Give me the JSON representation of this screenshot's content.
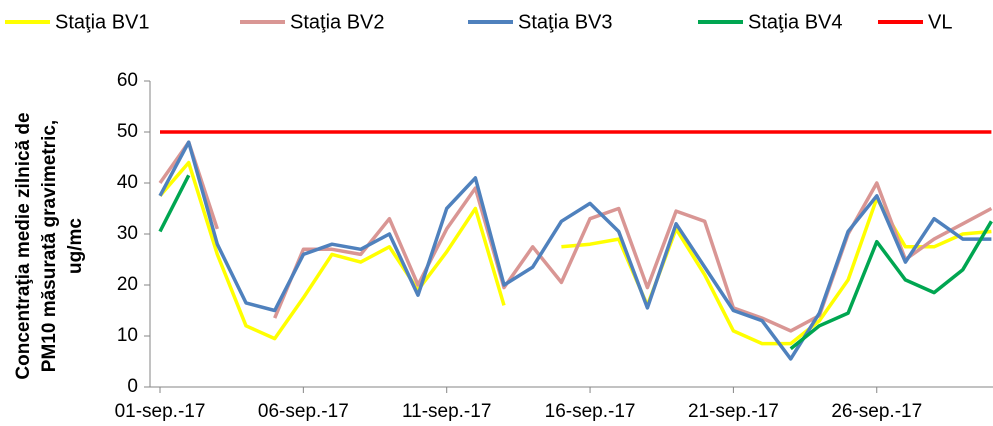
{
  "chart_data": {
    "type": "line",
    "ylabel_lines": [
      "Concentraţia medie zilnică de",
      "PM10 măsurată gravimetric,",
      "ug/mc"
    ],
    "categories": [
      "01-sep.-17",
      null,
      null,
      null,
      null,
      "06-sep.-17",
      null,
      null,
      null,
      null,
      "11-sep.-17",
      null,
      null,
      null,
      null,
      "16-sep.-17",
      null,
      null,
      null,
      null,
      "21-sep.-17",
      null,
      null,
      null,
      null,
      "26-sep.-17",
      null,
      null,
      null,
      null
    ],
    "series": [
      {
        "name": "Staţia BV1",
        "color": "#ffff00",
        "values": [
          37.5,
          44,
          26,
          12,
          9.5,
          17.5,
          26,
          24.5,
          27.5,
          19,
          26.5,
          35,
          16,
          null,
          27.5,
          28,
          29,
          16,
          31,
          22,
          11,
          8.5,
          8.5,
          13,
          21,
          37,
          27.5,
          27.5,
          30,
          30.5
        ]
      },
      {
        "name": "Staţia BV2",
        "color": "#d99694",
        "values": [
          40,
          48,
          31,
          null,
          13.5,
          27,
          27,
          26,
          33,
          20,
          31,
          39,
          19.5,
          27.5,
          20.5,
          33,
          35,
          19.5,
          34.5,
          32.5,
          15.5,
          13.5,
          11,
          14,
          30,
          40,
          25,
          29,
          32,
          35
        ]
      },
      {
        "name": "Staţia BV3",
        "color": "#4f81bd",
        "values": [
          37.5,
          48,
          28,
          16.5,
          15,
          26,
          28,
          27,
          30,
          18,
          35,
          41,
          20,
          23.5,
          32.5,
          36,
          30.5,
          15.5,
          32,
          23.5,
          15,
          13,
          5.5,
          14.5,
          30.5,
          37.5,
          24.5,
          33,
          29,
          29
        ]
      },
      {
        "name": "Staţia BV4",
        "color": "#00a651",
        "values": [
          30.5,
          41.5,
          null,
          null,
          null,
          null,
          null,
          null,
          null,
          null,
          null,
          null,
          null,
          null,
          null,
          null,
          null,
          null,
          null,
          null,
          null,
          null,
          7.5,
          12,
          14.5,
          28.5,
          21,
          18.5,
          23,
          32.5
        ]
      },
      {
        "name": "VL",
        "color": "#ff0000",
        "values": [
          50,
          50,
          50,
          50,
          50,
          50,
          50,
          50,
          50,
          50,
          50,
          50,
          50,
          50,
          50,
          50,
          50,
          50,
          50,
          50,
          50,
          50,
          50,
          50,
          50,
          50,
          50,
          50,
          50,
          50
        ]
      }
    ],
    "ylim": [
      0,
      60
    ],
    "yticks": [
      0,
      10,
      20,
      30,
      40,
      50,
      60
    ],
    "grid": false
  }
}
